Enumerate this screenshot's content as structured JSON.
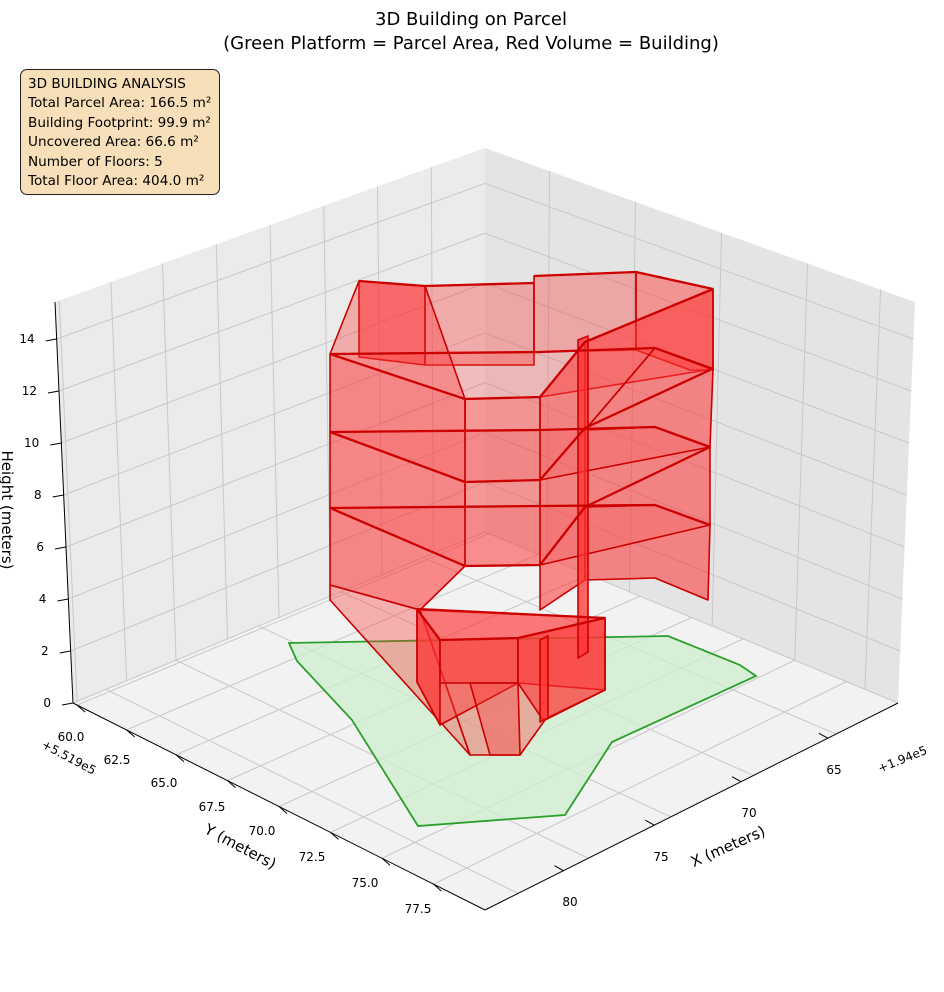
{
  "chart_data": {
    "type": "3d-polygons",
    "title": "3D Building on Parcel",
    "subtitle": "(Green Platform = Parcel Area, Red Volume = Building)",
    "xlabel": "X (meters)",
    "ylabel": "Y (meters)",
    "zlabel": "Height (meters)",
    "x_offset_label": "+1.94e5",
    "y_offset_label": "+5.519e5",
    "x_ticks": [
      "65",
      "70",
      "75",
      "80"
    ],
    "y_ticks": [
      "60.0",
      "62.5",
      "65.0",
      "67.5",
      "70.0",
      "72.5",
      "75.0",
      "77.5"
    ],
    "z_ticks": [
      "0",
      "2",
      "4",
      "6",
      "8",
      "10",
      "12",
      "14"
    ],
    "grid": true,
    "colors": {
      "parcel_fill": "#cceecc",
      "parcel_edge": "#2ca02c",
      "building_fill": "#ff3333",
      "building_edge": "#cc0000",
      "info_box_bg": "#f7dfb9"
    },
    "parcel": {
      "name": "Parcel Area",
      "area_m2": 166.5,
      "z": 0
    },
    "building": {
      "name": "Building",
      "footprint_m2": 99.9,
      "floors": 5,
      "total_floor_area_m2": 404.0,
      "floor_heights": [
        0,
        3,
        6,
        9,
        12,
        15
      ]
    }
  },
  "info_box": {
    "lines": [
      "3D BUILDING ANALYSIS",
      "Total Parcel Area: 166.5 m²",
      "Building Footprint: 99.9 m²",
      "Uncovered Area: 66.6 m²",
      "Number of Floors: 5",
      "Total Floor Area: 404.0 m²"
    ]
  }
}
